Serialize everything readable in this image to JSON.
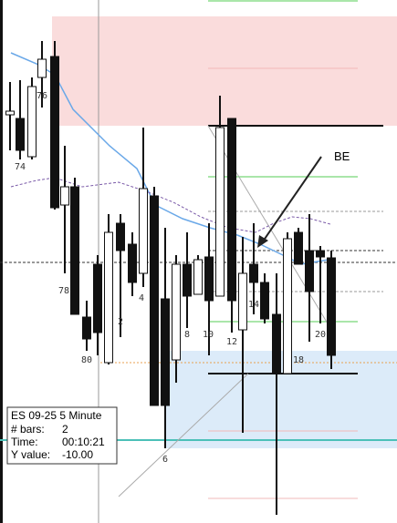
{
  "bar_labels": [
    "74",
    "76",
    "78",
    "80",
    "2",
    "4",
    "6",
    "8",
    "10",
    "12",
    "14",
    "18",
    "20"
  ],
  "annotation": "BE",
  "info_box": {
    "instrument": "ES 09-25 5 Minute",
    "rows": [
      {
        "label": "# bars:",
        "value": "2"
      },
      {
        "label": "Time:",
        "value": "00:10:21"
      },
      {
        "label": "Y value:",
        "value": "-10.00"
      }
    ]
  }
}
